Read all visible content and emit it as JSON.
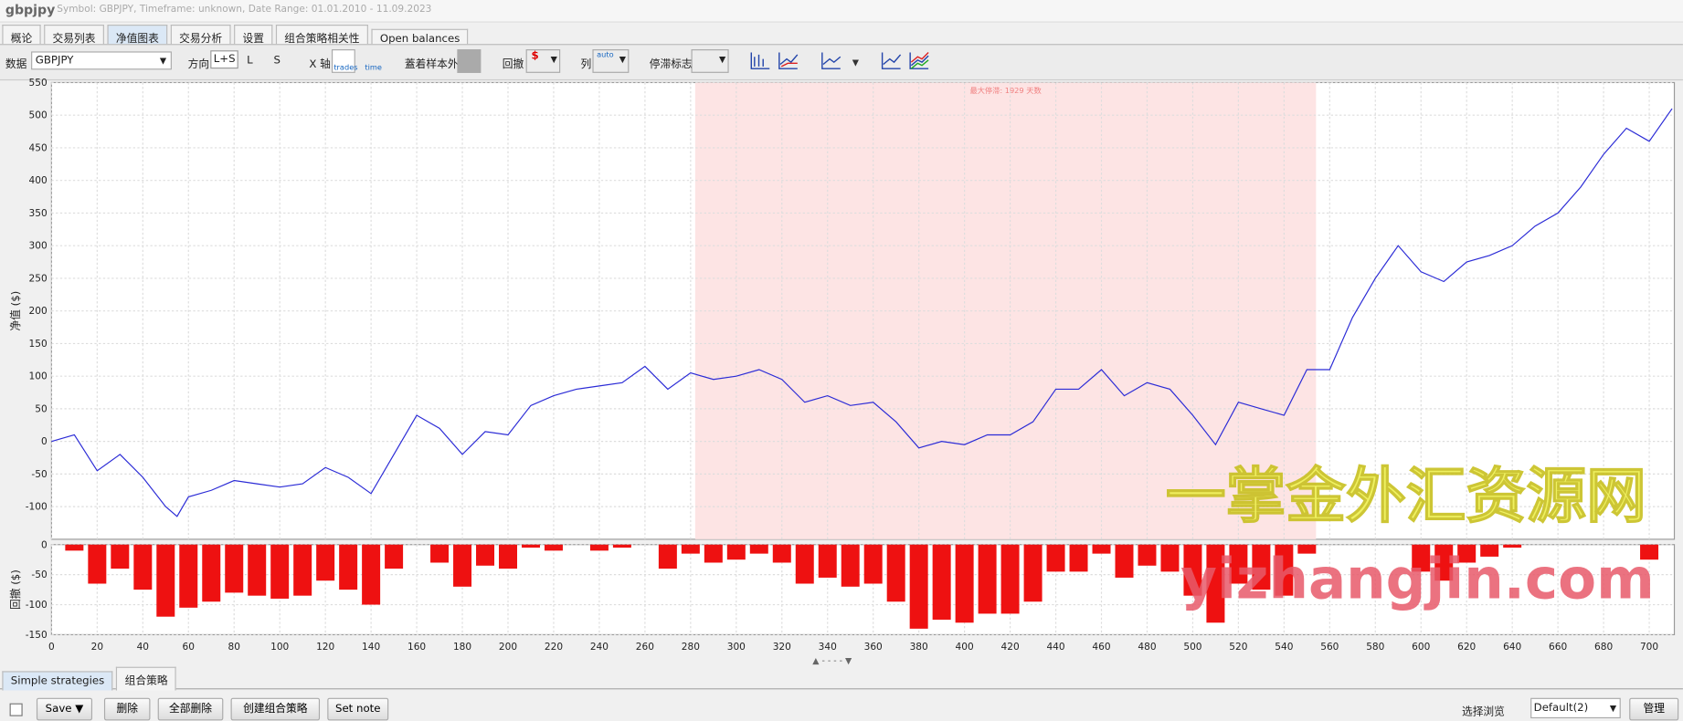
{
  "header": {
    "title": "gbpjpy",
    "subtitle": "Symbol: GBPJPY, Timeframe: unknown, Date Range: 01.01.2010 - 11.09.2023"
  },
  "tabs": [
    "概论",
    "交易列表",
    "净值图表",
    "交易分析",
    "设置",
    "组合策略相关性",
    "Open balances"
  ],
  "toolbar": {
    "data_label": "数据",
    "symbol": "GBPJPY",
    "direction_label": "方向",
    "directions": [
      "L+S",
      "L",
      "S"
    ],
    "x_axis_label": "X 轴",
    "x_options": [
      "trades",
      "time"
    ],
    "oos_label": "蓋着样本外",
    "drawdown_label": "回撤",
    "columns_label": "列",
    "columns_value": "auto",
    "stagnation_label": "停滞标志"
  },
  "chart_data": [
    {
      "type": "line",
      "y_label": "净值 ($)",
      "annotation": "最大停滞: 1929 天数",
      "highlight_range": [
        282,
        554
      ],
      "x": [
        0,
        10,
        20,
        30,
        40,
        50,
        55,
        60,
        70,
        80,
        90,
        100,
        110,
        120,
        130,
        140,
        150,
        160,
        170,
        180,
        190,
        200,
        210,
        220,
        230,
        240,
        250,
        260,
        270,
        280,
        290,
        300,
        310,
        320,
        330,
        340,
        350,
        360,
        370,
        380,
        390,
        400,
        410,
        420,
        430,
        440,
        450,
        460,
        470,
        480,
        490,
        500,
        510,
        520,
        530,
        540,
        550,
        560,
        570,
        580,
        590,
        600,
        610,
        620,
        630,
        640,
        650,
        660,
        670,
        680,
        690,
        700,
        710
      ],
      "series": [
        {
          "color": "#2b2bd6",
          "values": [
            0,
            10,
            -45,
            -20,
            -55,
            -100,
            -115,
            -85,
            -75,
            -60,
            -65,
            -70,
            -65,
            -40,
            -55,
            -80,
            -20,
            40,
            20,
            -20,
            15,
            10,
            55,
            70,
            80,
            85,
            90,
            115,
            80,
            105,
            95,
            100,
            110,
            95,
            60,
            70,
            55,
            60,
            30,
            -10,
            0,
            -5,
            10,
            10,
            30,
            80,
            80,
            110,
            70,
            90,
            80,
            40,
            -5,
            60,
            50,
            40,
            110,
            110,
            190,
            250,
            300,
            260,
            245,
            275,
            285,
            300,
            330,
            350,
            390,
            440,
            480,
            460,
            510
          ]
        }
      ],
      "xlim": [
        0,
        711
      ],
      "ylim": [
        -150,
        550
      ],
      "yticks": [
        -100,
        -50,
        0,
        50,
        100,
        150,
        200,
        250,
        300,
        350,
        400,
        450,
        500,
        550
      ]
    },
    {
      "type": "bar",
      "y_label": "回撤 ($)",
      "color": "#ee1111",
      "x": [
        0,
        10,
        20,
        30,
        40,
        50,
        60,
        70,
        80,
        90,
        100,
        110,
        120,
        130,
        140,
        150,
        160,
        170,
        180,
        190,
        200,
        210,
        220,
        230,
        240,
        250,
        260,
        270,
        280,
        290,
        300,
        310,
        320,
        330,
        340,
        350,
        360,
        370,
        380,
        390,
        400,
        410,
        420,
        430,
        440,
        450,
        460,
        470,
        480,
        490,
        500,
        510,
        520,
        530,
        540,
        550,
        560,
        570,
        580,
        590,
        600,
        610,
        620,
        630,
        640,
        650,
        660,
        670,
        680,
        690,
        700,
        710
      ],
      "values": [
        0,
        -10,
        -65,
        -40,
        -75,
        -120,
        -105,
        -95,
        -80,
        -85,
        -90,
        -85,
        -60,
        -75,
        -100,
        -40,
        0,
        -30,
        -70,
        -35,
        -40,
        -5,
        -10,
        0,
        -10,
        -5,
        0,
        -40,
        -15,
        -30,
        -25,
        -15,
        -30,
        -65,
        -55,
        -70,
        -65,
        -95,
        -140,
        -125,
        -130,
        -115,
        -115,
        -95,
        -45,
        -45,
        -15,
        -55,
        -35,
        -45,
        -85,
        -130,
        -65,
        -75,
        -85,
        -15,
        0,
        0,
        0,
        0,
        -45,
        -60,
        -30,
        -20,
        -5,
        0,
        0,
        0,
        0,
        0,
        -25,
        0
      ],
      "xlim": [
        0,
        711
      ],
      "ylim": [
        -150,
        0
      ],
      "yticks": [
        0,
        -50,
        -100,
        -150
      ],
      "xticks": [
        0,
        20,
        40,
        60,
        80,
        100,
        120,
        140,
        160,
        180,
        200,
        220,
        240,
        260,
        280,
        300,
        320,
        340,
        360,
        380,
        400,
        420,
        440,
        460,
        480,
        500,
        520,
        540,
        560,
        580,
        600,
        620,
        640,
        660,
        680,
        700
      ]
    }
  ],
  "bottom_tabs": [
    "Simple strategies",
    "组合策略"
  ],
  "buttons": [
    "Save",
    "删除",
    "全部删除",
    "创建组合策略",
    "Set note"
  ],
  "browse_label": "选择浏览",
  "browse_value": "Default(2)",
  "manage": "管理",
  "watermark": [
    "一掌金外汇资源网",
    "yizhangjin.com"
  ]
}
